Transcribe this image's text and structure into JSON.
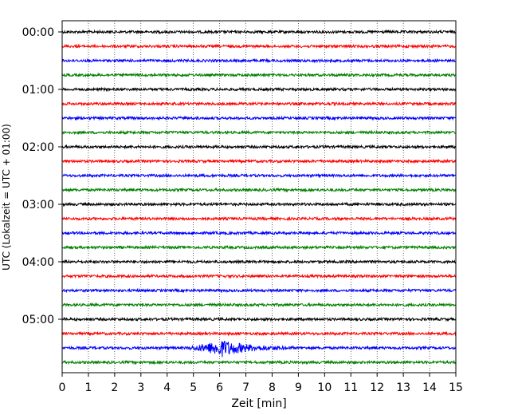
{
  "chart_data": {
    "type": "line",
    "title": "",
    "xlabel": "Zeit  [min]",
    "ylabel": "UTC (Lokalzeit = UTC + 01:00)",
    "xlim": [
      0,
      15
    ],
    "x_ticks": [
      "0",
      "1",
      "2",
      "3",
      "4",
      "5",
      "6",
      "7",
      "8",
      "9",
      "10",
      "11",
      "12",
      "13",
      "14",
      "15"
    ],
    "y_tick_labels": [
      "00:00",
      "01:00",
      "02:00",
      "03:00",
      "04:00",
      "05:00"
    ],
    "trace_interval_minutes": 15,
    "trace_count": 24,
    "grid": "vertical dotted",
    "legend": "none",
    "colors": [
      "#000000",
      "#ff0000",
      "#0000ff",
      "#008000"
    ],
    "event": {
      "trace_index": 22,
      "start_min": 4.6,
      "peak_min": 6.1,
      "end_min": 8.8,
      "relative_amplitude": 6
    }
  }
}
